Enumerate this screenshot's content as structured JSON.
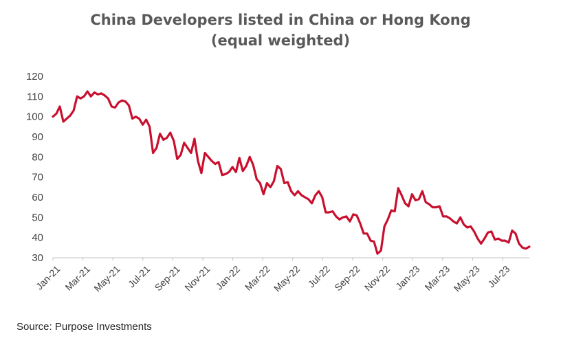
{
  "chart_data": {
    "type": "line",
    "title": "China Developers listed in China or Hong Kong",
    "subtitle": "(equal weighted)",
    "xlabel": "",
    "ylabel": "",
    "ylim": [
      30,
      120
    ],
    "y_ticks": [
      30,
      40,
      50,
      60,
      70,
      80,
      90,
      100,
      110,
      120
    ],
    "x_tick_labels": [
      "Jan-21",
      "Mar-21",
      "May-21",
      "Jul-21",
      "Sep-21",
      "Nov-21",
      "Jan-22",
      "Mar-22",
      "May-22",
      "Jul-22",
      "Sep-22",
      "Nov-22",
      "Jan-23",
      "Mar-23",
      "May-23",
      "Jul-23"
    ],
    "grid": false,
    "line_color": "#c8102e",
    "series": [
      {
        "values": [
          100,
          101.5,
          105,
          97.5,
          99,
          100.5,
          103,
          110,
          109,
          110,
          112.5,
          110,
          112,
          111,
          111.5,
          110.5,
          109,
          105,
          104.5,
          107,
          108,
          107.5,
          105.5,
          99,
          100,
          99,
          96,
          98.5,
          95,
          82,
          84.5,
          91.5,
          88.5,
          89.5,
          92,
          88,
          79,
          81,
          87,
          84.5,
          82,
          89,
          78,
          72,
          82,
          80,
          78,
          76.5,
          77.5,
          71,
          71.5,
          72.5,
          75,
          72.5,
          79.5,
          73,
          75.5,
          80,
          76,
          69,
          67,
          61.5,
          67,
          65,
          68,
          75.5,
          74,
          67,
          67.5,
          63,
          61,
          63,
          61,
          60,
          59,
          57,
          61,
          63,
          60,
          52.5,
          52.5,
          53,
          50.5,
          49,
          50,
          50.5,
          48,
          51.5,
          51,
          47,
          42,
          42,
          38.5,
          38,
          32,
          33.5,
          45.5,
          49,
          53.5,
          53,
          64.5,
          61,
          57,
          55.5,
          61.5,
          58.5,
          59,
          63,
          57.5,
          56.5,
          55,
          55,
          55.5,
          50.5,
          50.5,
          49.5,
          48,
          47,
          50,
          46.5,
          45,
          45.5,
          43,
          39.5,
          37,
          39.5,
          42.5,
          43,
          39,
          39.5,
          38.5,
          38.5,
          37.5,
          43.5,
          42,
          37,
          35,
          34.5,
          35.5
        ]
      }
    ]
  },
  "source": "Source: Purpose Investments"
}
